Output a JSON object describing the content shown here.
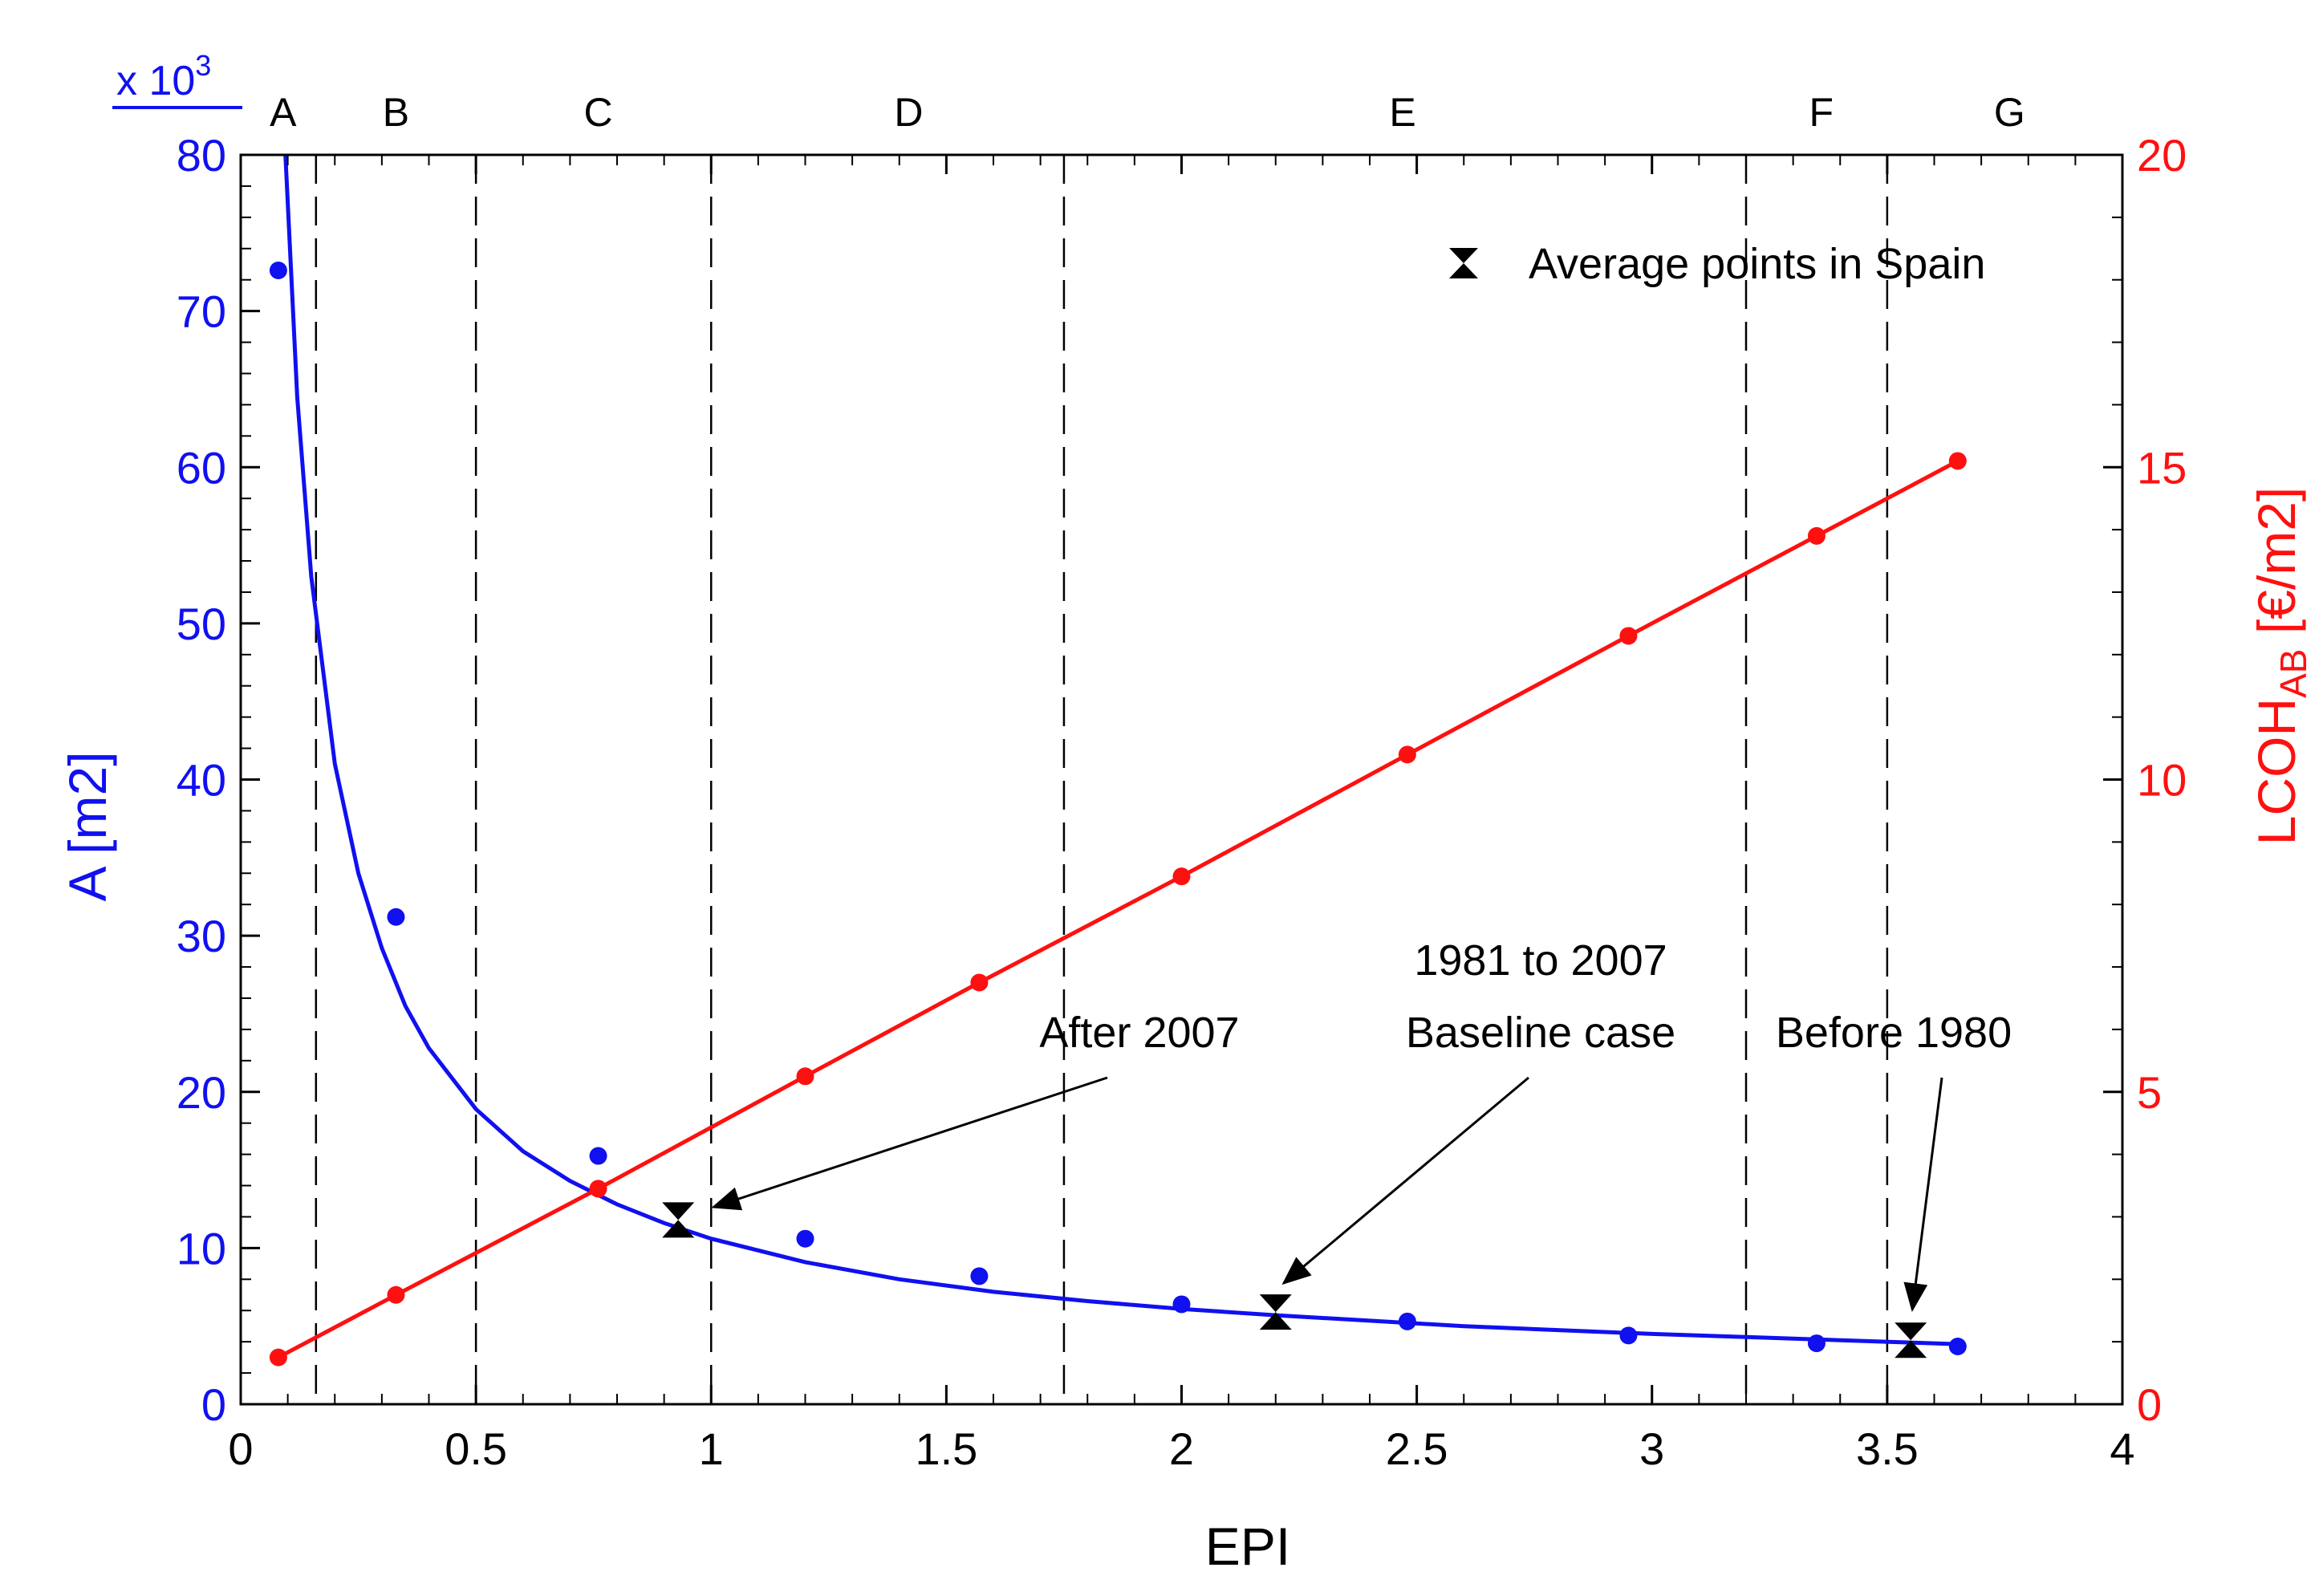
{
  "chart_data": {
    "type": "scatter",
    "xlabel": "EPI",
    "xlim": [
      0,
      4
    ],
    "x_ticks": [
      0,
      0.5,
      1,
      1.5,
      2,
      2.5,
      3,
      3.5,
      4
    ],
    "x_tick_labels": [
      "0",
      "0.5",
      "1",
      "1.5",
      "2",
      "2.5",
      "3",
      "3.5",
      "4"
    ],
    "y_left": {
      "label": "A [m2]",
      "multiplier": "x 10",
      "multiplier_exponent": "3",
      "lim": [
        0,
        80
      ],
      "ticks": [
        0,
        10,
        20,
        30,
        40,
        50,
        60,
        70,
        80
      ],
      "tick_labels": [
        "0",
        "10",
        "20",
        "30",
        "40",
        "50",
        "60",
        "70",
        "80"
      ],
      "color": "#1010f0"
    },
    "y_right": {
      "label_main": "LCOH",
      "label_sub": "AB",
      "label_unit": " [€/m2]",
      "lim": [
        0,
        20
      ],
      "ticks": [
        0,
        5,
        10,
        15,
        20
      ],
      "tick_labels": [
        "0",
        "5",
        "10",
        "15",
        "20"
      ],
      "color": "#ff1010"
    },
    "zones": {
      "labels": [
        "A",
        "B",
        "C",
        "D",
        "E",
        "F",
        "G"
      ],
      "label_x": [
        0.09,
        0.33,
        0.76,
        1.42,
        2.47,
        3.36,
        3.76
      ],
      "boundaries": [
        0.16,
        0.5,
        1.0,
        1.75,
        3.2,
        3.5
      ]
    },
    "series": [
      {
        "name": "A [m2] (points)",
        "axis": "left",
        "color": "#1010f0",
        "x": [
          0.08,
          0.33,
          0.76,
          1.2,
          1.57,
          2.0,
          2.48,
          2.95,
          3.35,
          3.65
        ],
        "y": [
          72.6,
          31.2,
          15.9,
          10.6,
          8.2,
          6.4,
          5.3,
          4.4,
          3.9,
          3.7
        ]
      },
      {
        "name": "A [m2] fit",
        "axis": "left",
        "color": "#1010f0",
        "style": "line",
        "x": [
          0.095,
          0.12,
          0.15,
          0.2,
          0.25,
          0.3,
          0.35,
          0.4,
          0.5,
          0.6,
          0.7,
          0.8,
          0.9,
          1.0,
          1.2,
          1.4,
          1.6,
          1.8,
          2.0,
          2.2,
          2.4,
          2.6,
          2.8,
          3.0,
          3.2,
          3.4,
          3.65
        ],
        "y": [
          80.0,
          64.5,
          53.0,
          41.0,
          34.0,
          29.2,
          25.5,
          22.8,
          18.9,
          16.2,
          14.3,
          12.8,
          11.6,
          10.6,
          9.1,
          8.0,
          7.2,
          6.6,
          6.1,
          5.7,
          5.35,
          5.0,
          4.75,
          4.5,
          4.3,
          4.1,
          3.85
        ]
      },
      {
        "name": "LCOH_AB [€/m2]",
        "axis": "right",
        "color": "#ff1010",
        "x": [
          0.08,
          0.33,
          0.76,
          1.2,
          1.57,
          2.0,
          2.48,
          2.95,
          3.35,
          3.65
        ],
        "y": [
          0.75,
          1.75,
          3.45,
          5.25,
          6.75,
          8.45,
          10.4,
          12.3,
          13.9,
          15.1
        ]
      },
      {
        "name": "Average points in Spain",
        "axis": "left",
        "color": "#000000",
        "marker": "hourglass",
        "x": [
          0.93,
          2.2,
          3.55
        ],
        "y": [
          11.8,
          5.9,
          4.1
        ]
      }
    ],
    "legend": {
      "label": "Average points in Spain",
      "position": "top-right"
    },
    "annotations": [
      {
        "lines": [
          "After 2007"
        ],
        "target_x": 0.93,
        "target_y": 11.8
      },
      {
        "lines": [
          "1981 to 2007",
          "Baseline case"
        ],
        "target_x": 2.2,
        "target_y": 5.9
      },
      {
        "lines": [
          "Before 1980"
        ],
        "target_x": 3.55,
        "target_y": 4.1
      }
    ]
  }
}
